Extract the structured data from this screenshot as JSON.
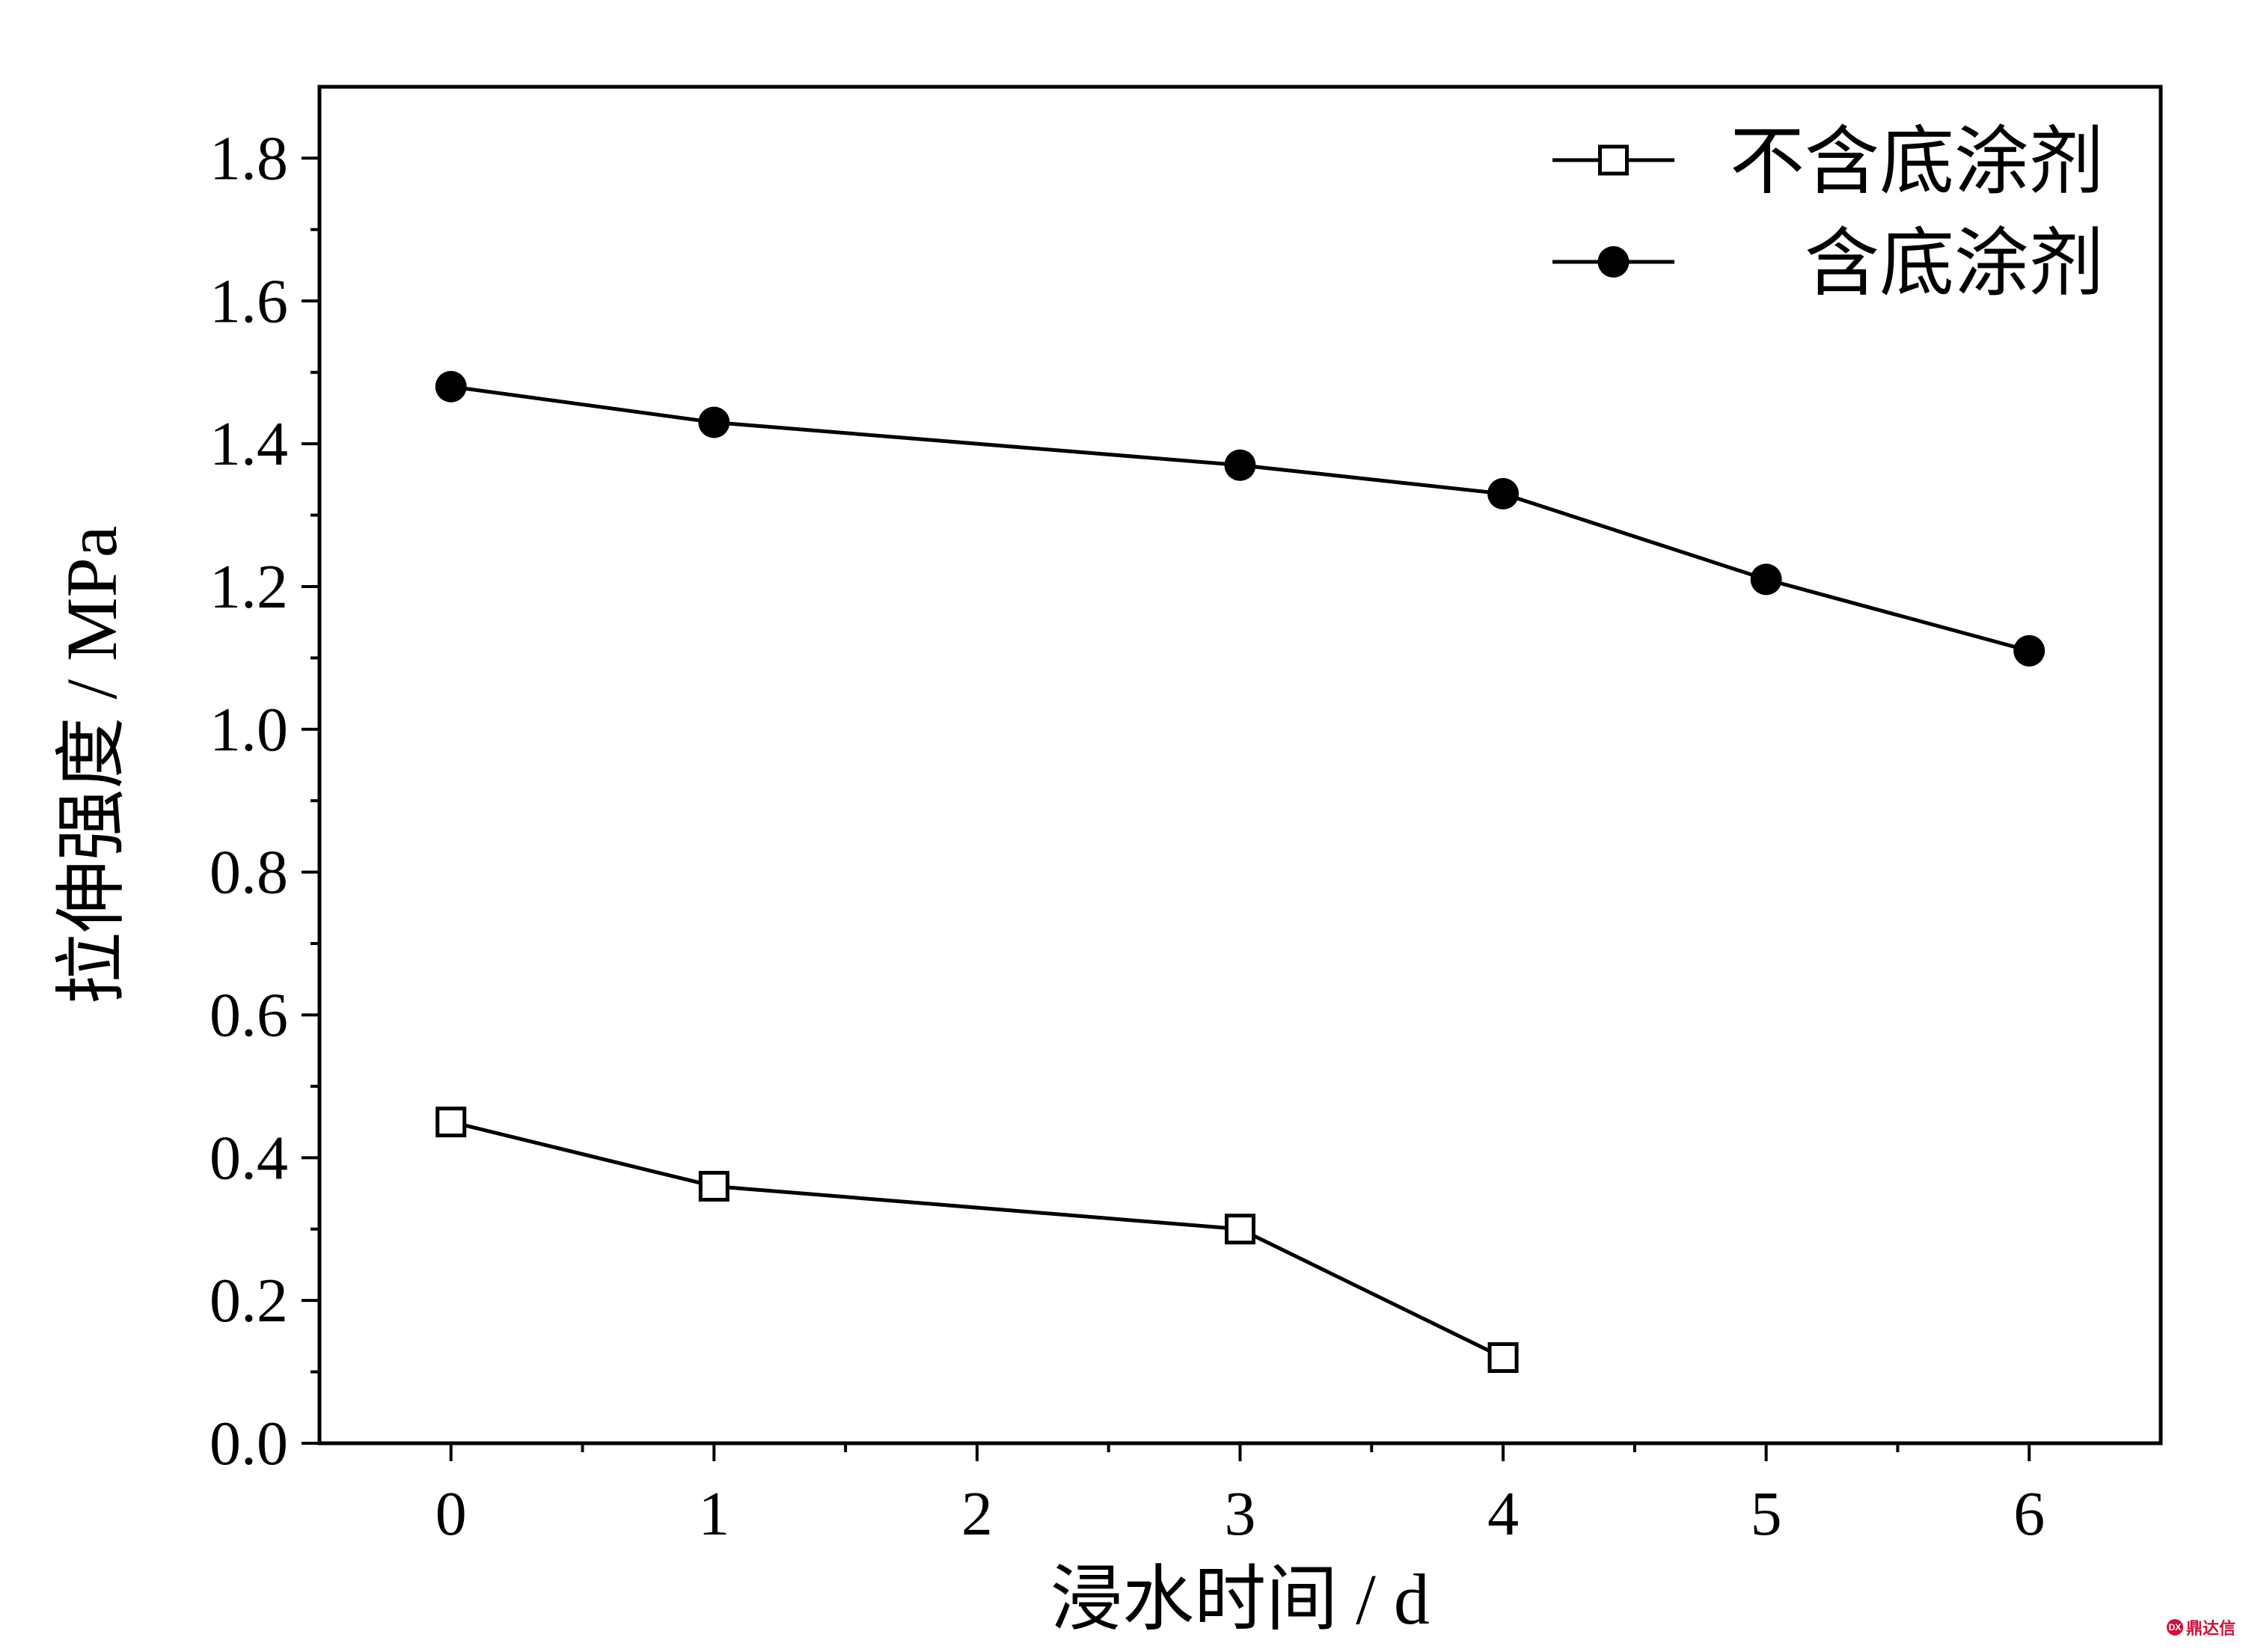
{
  "chart_data": {
    "type": "line",
    "title": "",
    "xlabel": "浸水时间 / d",
    "ylabel": "拉伸强度 / MPa",
    "xlim": [
      -0.5,
      6.5
    ],
    "ylim": [
      0.0,
      1.9
    ],
    "x_ticks": [
      "0",
      "1",
      "2",
      "3",
      "4",
      "5",
      "6"
    ],
    "y_ticks": [
      "0.0",
      "0.2",
      "0.4",
      "0.6",
      "0.8",
      "1.0",
      "1.2",
      "1.4",
      "1.6",
      "1.8"
    ],
    "grid": false,
    "legend_position": "top-right",
    "series": [
      {
        "name": "不含底涂剂",
        "marker": "open-square",
        "color": "#000000",
        "x": [
          0,
          1,
          3,
          4
        ],
        "y": [
          0.45,
          0.36,
          0.3,
          0.12
        ]
      },
      {
        "name": "含底涂剂",
        "marker": "filled-circle",
        "color": "#000000",
        "x": [
          0,
          1,
          3,
          4,
          5,
          6
        ],
        "y": [
          1.48,
          1.43,
          1.37,
          1.33,
          1.21,
          1.11
        ]
      }
    ]
  },
  "watermark": {
    "icon_text": "DX",
    "text": "鼎达信"
  }
}
